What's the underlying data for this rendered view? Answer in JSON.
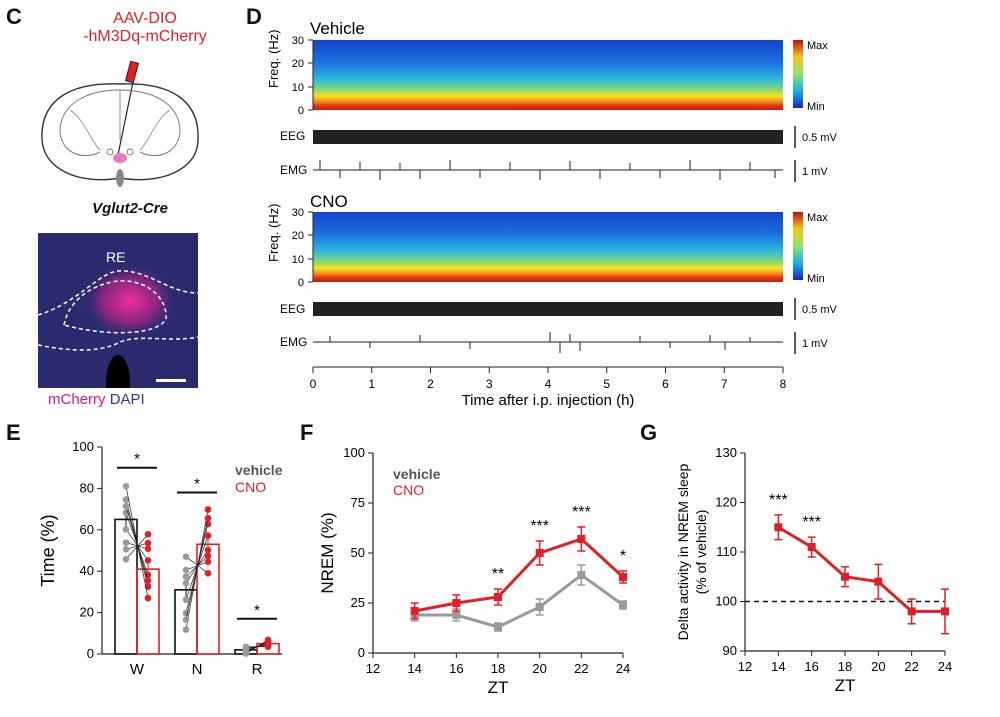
{
  "colors": {
    "red": "#e41e25",
    "gray": "#9a9a9a",
    "blue_dapi": "#2b3a9a",
    "magenta": "#e0187a"
  },
  "panels": {
    "c": "C",
    "d": "D",
    "e": "E",
    "f": "F",
    "g": "G"
  },
  "panel_c": {
    "virus_line1": "AAV-DIO",
    "virus_line2": "-hM3Dq-mCherry",
    "mouse_line": "Vglut2-Cre",
    "region_label": "RE",
    "stain_mcherry": "mCherry",
    "stain_dapi": "DAPI"
  },
  "panel_d": {
    "vehicle_title": "Vehicle",
    "cno_title": "CNO",
    "freq_axis_label": "Freq. (Hz)",
    "freq_ticks": [
      "30",
      "20",
      "10",
      "0"
    ],
    "colorbar_max": "Max",
    "colorbar_min": "Min",
    "eeg_label": "EEG",
    "emg_label": "EMG",
    "eeg_scale": "0.5 mV",
    "emg_scale": "1 mV",
    "time_ticks": [
      "0",
      "1",
      "2",
      "3",
      "4",
      "5",
      "6",
      "7",
      "8"
    ],
    "time_axis_label": "Time after i.p. injection (h)"
  },
  "chart_data": [
    {
      "panel": "E",
      "type": "bar",
      "ylabel": "Time (%)",
      "yticks": [
        "0",
        "20",
        "40",
        "60",
        "80",
        "100"
      ],
      "ylim": [
        0,
        100
      ],
      "categories": [
        "W",
        "N",
        "R"
      ],
      "series": [
        {
          "name": "vehicle",
          "values": [
            65,
            31,
            2
          ]
        },
        {
          "name": "CNO",
          "values": [
            41,
            53,
            5
          ]
        }
      ],
      "errors": {
        "vehicle": [
          4,
          4,
          0.5
        ],
        "CNO": [
          4,
          4,
          1
        ]
      },
      "significance": [
        "*",
        "*",
        "*"
      ],
      "legend": [
        "vehicle",
        "CNO"
      ]
    },
    {
      "panel": "F",
      "type": "line",
      "xlabel": "ZT",
      "ylabel": "NREM (%)",
      "x": [
        14,
        16,
        18,
        20,
        22,
        24
      ],
      "xticks": [
        "12",
        "14",
        "16",
        "18",
        "20",
        "22",
        "24"
      ],
      "yticks": [
        "0",
        "25",
        "50",
        "75",
        "100"
      ],
      "xlim": [
        12,
        24
      ],
      "ylim": [
        0,
        100
      ],
      "series": [
        {
          "name": "vehicle",
          "values": [
            19,
            19,
            13,
            23,
            39,
            24
          ],
          "errors": [
            3,
            3,
            2,
            4,
            5,
            2
          ]
        },
        {
          "name": "CNO",
          "values": [
            21,
            25,
            28,
            50,
            57,
            38
          ],
          "errors": [
            4,
            4,
            4,
            6,
            6,
            3
          ]
        }
      ],
      "significance": {
        "18": "**",
        "20": "***",
        "22": "***",
        "24": "*"
      },
      "legend": [
        "vehicle",
        "CNO"
      ]
    },
    {
      "panel": "G",
      "type": "line",
      "xlabel": "ZT",
      "ylabel_line1": "Delta activity in NREM sleep",
      "ylabel_line2": "(% of vehicle)",
      "x": [
        14,
        16,
        18,
        20,
        22,
        24
      ],
      "xticks": [
        "12",
        "14",
        "16",
        "18",
        "20",
        "22",
        "24"
      ],
      "yticks": [
        "90",
        "100",
        "110",
        "120",
        "130"
      ],
      "xlim": [
        12,
        24
      ],
      "ylim": [
        90,
        130
      ],
      "reference_line": 100,
      "series": [
        {
          "name": "CNO",
          "values": [
            115,
            111,
            105,
            104,
            98,
            98
          ],
          "errors": [
            2.5,
            2,
            2,
            3.5,
            2.5,
            4.5
          ]
        }
      ],
      "significance": {
        "14": "***",
        "16": "***"
      }
    }
  ]
}
